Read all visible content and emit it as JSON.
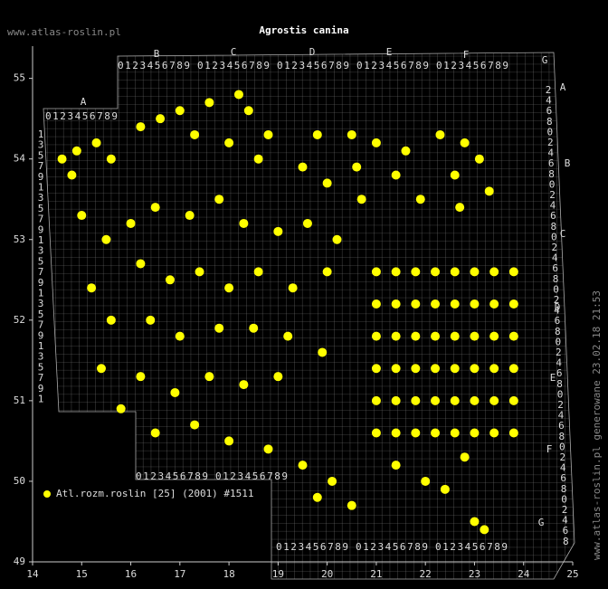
{
  "chart_data": {
    "type": "scatter",
    "title": "Agrostis canina",
    "xlim": [
      14,
      25
    ],
    "ylim": [
      49,
      55.4
    ],
    "xticks": [
      14,
      15,
      16,
      17,
      18,
      19,
      20,
      21,
      22,
      23,
      24,
      25
    ],
    "yticks": [
      49,
      50,
      51,
      52,
      53,
      54,
      55
    ],
    "series": [
      {
        "name": "Atl.rozm.roslin [25] (2001) #1511",
        "color": "#ffff00",
        "x": [
          14.6,
          14.9,
          15.3,
          14.8,
          15.6,
          16.2,
          16.6,
          17.0,
          17.6,
          18.2,
          18.4,
          17.3,
          18.0,
          18.8,
          18.6,
          19.8,
          20.5,
          21.0,
          21.6,
          22.3,
          22.8,
          23.1,
          22.6,
          21.4,
          20.6,
          20.0,
          19.5,
          23.3,
          22.7,
          21.9,
          20.7,
          15.0,
          15.5,
          16.0,
          16.5,
          17.2,
          17.8,
          18.3,
          19.0,
          19.6,
          20.2,
          16.2,
          16.8,
          17.4,
          18.0,
          18.6,
          19.3,
          20.0,
          15.2,
          15.6,
          16.4,
          17.0,
          17.8,
          18.5,
          19.2,
          19.9,
          15.4,
          16.2,
          16.9,
          17.6,
          18.3,
          19.0,
          15.8,
          16.5,
          17.3,
          18.0,
          18.8,
          19.5,
          20.1,
          20.5,
          19.8,
          21.0,
          21.4,
          21.8,
          22.2,
          22.6,
          23.0,
          23.4,
          23.8,
          21.0,
          21.4,
          21.8,
          22.2,
          22.6,
          23.0,
          23.4,
          23.8,
          21.0,
          21.4,
          21.8,
          22.2,
          22.6,
          23.0,
          23.4,
          23.8,
          21.0,
          21.4,
          21.8,
          22.2,
          22.6,
          23.0,
          23.4,
          23.8,
          21.0,
          21.4,
          21.8,
          22.2,
          22.6,
          23.0,
          23.4,
          23.8,
          21.0,
          21.4,
          21.8,
          22.2,
          22.6,
          23.0,
          23.4,
          23.8,
          22.4,
          23.0,
          23.2,
          21.4,
          22.0,
          22.8
        ],
        "y": [
          54.0,
          54.1,
          54.2,
          53.8,
          54.0,
          54.4,
          54.5,
          54.6,
          54.7,
          54.8,
          54.6,
          54.3,
          54.2,
          54.3,
          54.0,
          54.3,
          54.3,
          54.2,
          54.1,
          54.3,
          54.2,
          54.0,
          53.8,
          53.8,
          53.9,
          53.7,
          53.9,
          53.6,
          53.4,
          53.5,
          53.5,
          53.3,
          53.0,
          53.2,
          53.4,
          53.3,
          53.5,
          53.2,
          53.1,
          53.2,
          53.0,
          52.7,
          52.5,
          52.6,
          52.4,
          52.6,
          52.4,
          52.6,
          52.4,
          52.0,
          52.0,
          51.8,
          51.9,
          51.9,
          51.8,
          51.6,
          51.4,
          51.3,
          51.1,
          51.3,
          51.2,
          51.3,
          50.9,
          50.6,
          50.7,
          50.5,
          50.4,
          50.2,
          50.0,
          49.7,
          49.8,
          50.6,
          50.6,
          50.6,
          50.6,
          50.6,
          50.6,
          50.6,
          50.6,
          51.0,
          51.0,
          51.0,
          51.0,
          51.0,
          51.0,
          51.0,
          51.0,
          51.4,
          51.4,
          51.4,
          51.4,
          51.4,
          51.4,
          51.4,
          51.4,
          51.8,
          51.8,
          51.8,
          51.8,
          51.8,
          51.8,
          51.8,
          51.8,
          52.2,
          52.2,
          52.2,
          52.2,
          52.2,
          52.2,
          52.2,
          52.2,
          52.6,
          52.6,
          52.6,
          52.6,
          52.6,
          52.6,
          52.6,
          52.6,
          49.9,
          49.5,
          49.4,
          50.2,
          50.0,
          50.3
        ]
      }
    ]
  },
  "watermark": "www.atlas-roslin.pl",
  "side_note": "www.atlas-roslin.pl generowane 23.02.18 21:53",
  "atpol_grid": {
    "letters": [
      "A",
      "B",
      "C",
      "D",
      "E",
      "F",
      "G"
    ],
    "digits": "0123456789",
    "odd_digits": [
      "1",
      "3",
      "5",
      "7",
      "9"
    ],
    "even_digits": [
      "2",
      "4",
      "6",
      "8",
      "0"
    ]
  }
}
